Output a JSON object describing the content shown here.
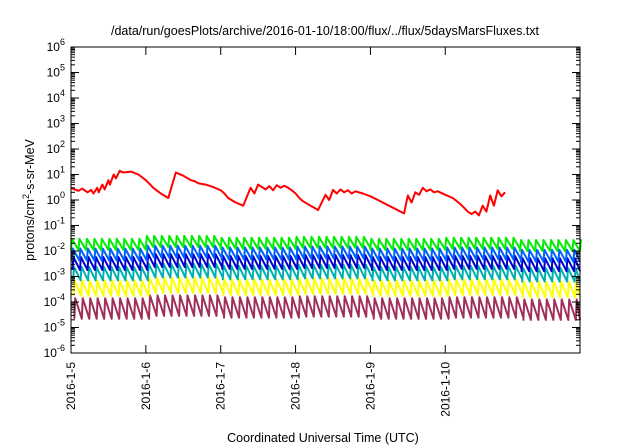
{
  "chart_data": {
    "type": "line",
    "title": "/data/run/goesPlots/archive/2016-01-10/18:00/flux/../flux/5daysMarsFluxes.txt",
    "xlabel": "Coordinated Universal Time (UTC)",
    "ylabel": {
      "base": "protons/cm",
      "exp": "2",
      "rest": "-s-sr-MeV"
    },
    "y_scale": "log",
    "ylim": [
      1e-06,
      1000000.0
    ],
    "xlim_days": [
      0,
      6.8
    ],
    "x_ticks": [
      {
        "day": 0,
        "label": "2016-1-5"
      },
      {
        "day": 1,
        "label": "2016-1-6"
      },
      {
        "day": 2,
        "label": "2016-1-7"
      },
      {
        "day": 3,
        "label": "2016-1-8"
      },
      {
        "day": 4,
        "label": "2016-1-9"
      },
      {
        "day": 5,
        "label": "2016-1-10"
      }
    ],
    "y_ticks": [
      {
        "value": 1e-06,
        "base": "10",
        "exp": "-6"
      },
      {
        "value": 1e-05,
        "base": "10",
        "exp": "-5"
      },
      {
        "value": 0.0001,
        "base": "10",
        "exp": "-4"
      },
      {
        "value": 0.001,
        "base": "10",
        "exp": "-3"
      },
      {
        "value": 0.01,
        "base": "10",
        "exp": "-2"
      },
      {
        "value": 0.1,
        "base": "10",
        "exp": "-1"
      },
      {
        "value": 1.0,
        "base": "10",
        "exp": "0"
      },
      {
        "value": 10.0,
        "base": "10",
        "exp": "1"
      },
      {
        "value": 100.0,
        "base": "10",
        "exp": "2"
      },
      {
        "value": 1000.0,
        "base": "10",
        "exp": "3"
      },
      {
        "value": 10000.0,
        "base": "10",
        "exp": "4"
      },
      {
        "value": 100000.0,
        "base": "10",
        "exp": "5"
      },
      {
        "value": 1000000.0,
        "base": "10",
        "exp": "6"
      }
    ],
    "grid": false,
    "series": [
      {
        "color": "#ff0000",
        "x": [
          0.0,
          0.05,
          0.1,
          0.15,
          0.2,
          0.22,
          0.27,
          0.3,
          0.35,
          0.37,
          0.42,
          0.45,
          0.5,
          0.52,
          0.57,
          0.6,
          0.65,
          0.7,
          0.8,
          0.9,
          1.0,
          1.1,
          1.2,
          1.3,
          1.4,
          1.5,
          1.6,
          1.65,
          1.7,
          1.8,
          1.9,
          2.0,
          2.05,
          2.1,
          2.2,
          2.3,
          2.4,
          2.45,
          2.5,
          2.6,
          2.65,
          2.7,
          2.75,
          2.8,
          2.85,
          2.9,
          2.95,
          3.0,
          3.05,
          3.1,
          3.2,
          3.25,
          3.3,
          3.4,
          3.45,
          3.5,
          3.55,
          3.6,
          3.65,
          3.7,
          3.75,
          3.8,
          3.9,
          4.0,
          4.1,
          4.2,
          4.3,
          4.4,
          4.45,
          4.5,
          4.55,
          4.6,
          4.65,
          4.7,
          4.75,
          4.8,
          4.85,
          4.9,
          5.0,
          5.1,
          5.2,
          5.25,
          5.3,
          5.35,
          5.4,
          5.45,
          5.5,
          5.55,
          5.6,
          5.65,
          5.7,
          5.75,
          5.8
        ],
        "y": [
          3.0,
          2.6,
          2.3,
          2.8,
          2.2,
          2.0,
          2.5,
          1.8,
          3.0,
          2.0,
          4.0,
          2.6,
          6.0,
          4.0,
          10.0,
          7.0,
          14.0,
          12.0,
          13.0,
          10.0,
          6.0,
          3.0,
          1.8,
          1.2,
          12.0,
          9.0,
          6.0,
          5.5,
          4.5,
          4.0,
          3.2,
          2.4,
          1.8,
          1.2,
          0.8,
          0.6,
          3.0,
          1.8,
          4.0,
          2.6,
          3.5,
          2.4,
          3.8,
          3.0,
          3.6,
          3.0,
          2.4,
          1.8,
          1.2,
          0.9,
          0.6,
          0.5,
          0.4,
          1.6,
          1.0,
          2.5,
          1.8,
          2.6,
          2.0,
          2.4,
          1.8,
          2.2,
          1.8,
          1.4,
          1.0,
          0.7,
          0.5,
          0.35,
          0.3,
          1.5,
          0.8,
          2.0,
          1.6,
          3.0,
          2.2,
          2.6,
          2.0,
          2.2,
          1.6,
          1.2,
          0.7,
          0.5,
          0.35,
          0.28,
          0.35,
          0.25,
          0.6,
          0.35,
          1.5,
          0.6,
          2.4,
          1.4,
          2.0
        ]
      },
      {
        "color": "#00ee00",
        "amp": 2.7,
        "low": 0.011,
        "high": 0.03,
        "phase": 0.0,
        "envelope": [
          1.0,
          1.3,
          1.1,
          1.2,
          1.0,
          1.1,
          0.9
        ]
      },
      {
        "color": "#0060ff",
        "amp": 3.0,
        "low": 0.0042,
        "high": 0.0125,
        "phase": 0.012,
        "envelope": [
          1.0,
          1.3,
          1.1,
          1.2,
          1.0,
          1.1,
          0.9
        ]
      },
      {
        "color": "#0000cc",
        "amp": 3.2,
        "low": 0.0018,
        "high": 0.0058,
        "phase": 0.02,
        "envelope": [
          1.0,
          1.3,
          1.1,
          1.2,
          1.0,
          1.1,
          0.9
        ]
      },
      {
        "color": "#00b0b0",
        "amp": 3.4,
        "low": 0.0007,
        "high": 0.0024,
        "phase": 0.028,
        "envelope": [
          1.0,
          1.3,
          1.1,
          1.2,
          1.0,
          1.1,
          0.9
        ]
      },
      {
        "color": "#ffff00",
        "amp": 4.0,
        "low": 0.00017,
        "high": 0.0007,
        "phase": 0.036,
        "envelope": [
          1.0,
          1.3,
          1.1,
          1.2,
          1.0,
          1.1,
          0.9
        ]
      },
      {
        "color": "#a0305a",
        "amp": 6.5,
        "low": 2.2e-05,
        "high": 0.00014,
        "phase": 0.044,
        "envelope": [
          1.0,
          1.3,
          1.1,
          1.2,
          1.0,
          1.1,
          0.9
        ]
      }
    ],
    "sawtooth_period_days": 0.1
  }
}
